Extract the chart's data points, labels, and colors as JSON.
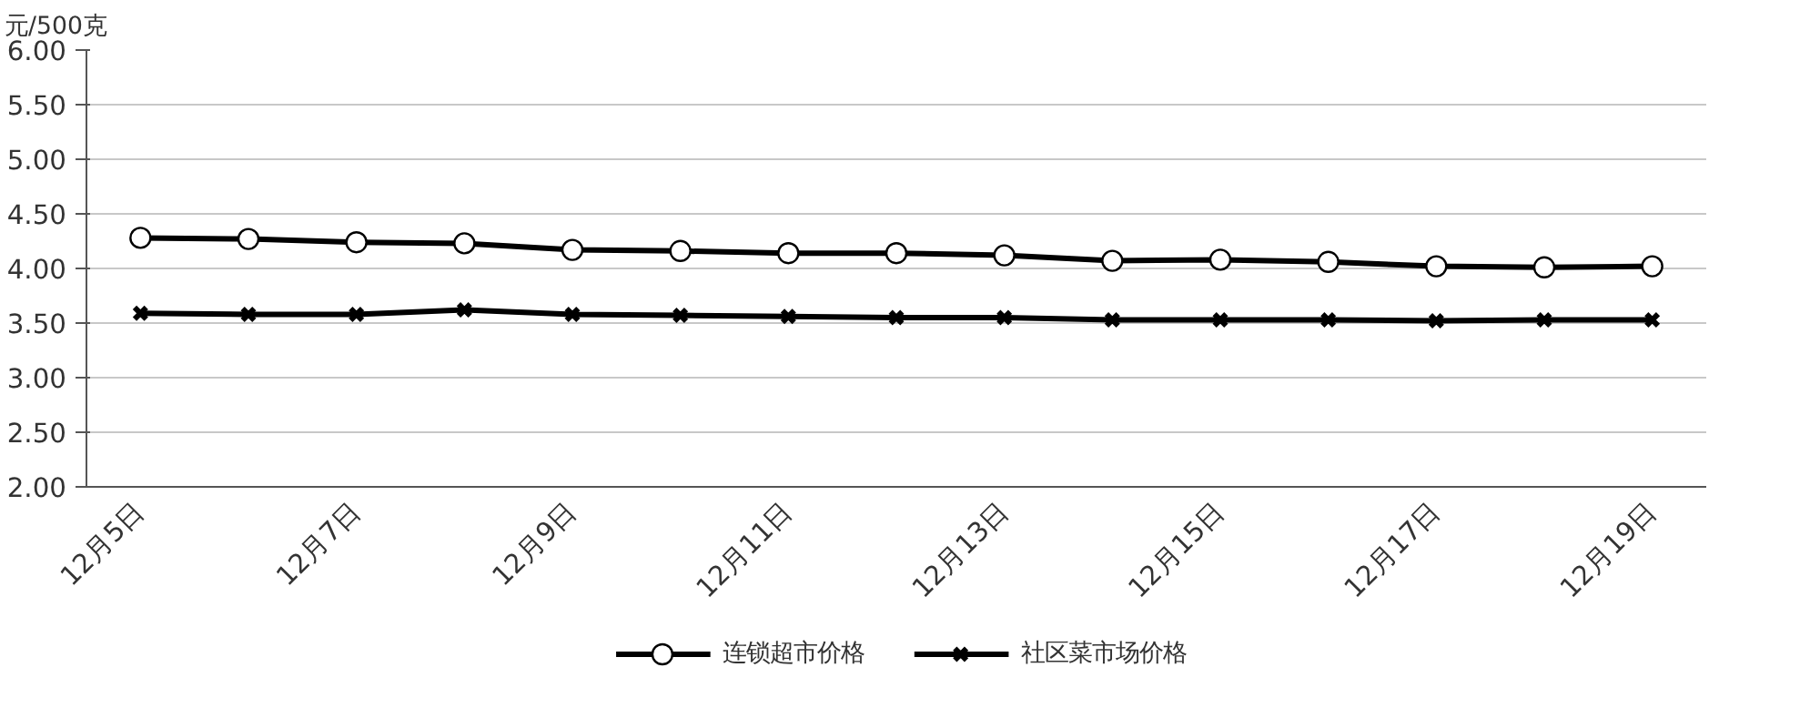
{
  "chart_data": {
    "type": "line",
    "ylabel": "元/500克",
    "categories": [
      "12月5日",
      null,
      "12月7日",
      null,
      "12月9日",
      null,
      "12月11日",
      null,
      "12月13日",
      null,
      "12月15日",
      null,
      "12月17日",
      null,
      "12月19日"
    ],
    "series": [
      {
        "name": "连锁超市价格",
        "color": "#000000",
        "marker": "circle",
        "values": [
          4.28,
          4.27,
          4.24,
          4.23,
          4.17,
          4.16,
          4.14,
          4.14,
          4.12,
          4.07,
          4.08,
          4.06,
          4.02,
          4.01,
          4.02
        ]
      },
      {
        "name": "社区菜市场价格",
        "color": "#000000",
        "marker": "cross",
        "values": [
          3.59,
          3.58,
          3.58,
          3.62,
          3.58,
          3.57,
          3.56,
          3.55,
          3.55,
          3.53,
          3.53,
          3.53,
          3.52,
          3.53,
          3.53
        ]
      }
    ],
    "ylim": [
      2,
      6
    ],
    "yticks": [
      {
        "value": 2,
        "label": "2.00"
      },
      {
        "value": 2.5,
        "label": "2.50"
      },
      {
        "value": 3,
        "label": "3.00"
      },
      {
        "value": 3.5,
        "label": "3.50"
      },
      {
        "value": 4,
        "label": "4.00"
      },
      {
        "value": 4.5,
        "label": "4.50"
      },
      {
        "value": 5,
        "label": "5.00"
      },
      {
        "value": 5.5,
        "label": "5.50"
      },
      {
        "value": 6,
        "label": "6.00"
      }
    ],
    "grid": "y",
    "legend": "bottom",
    "line_style": "solid"
  }
}
